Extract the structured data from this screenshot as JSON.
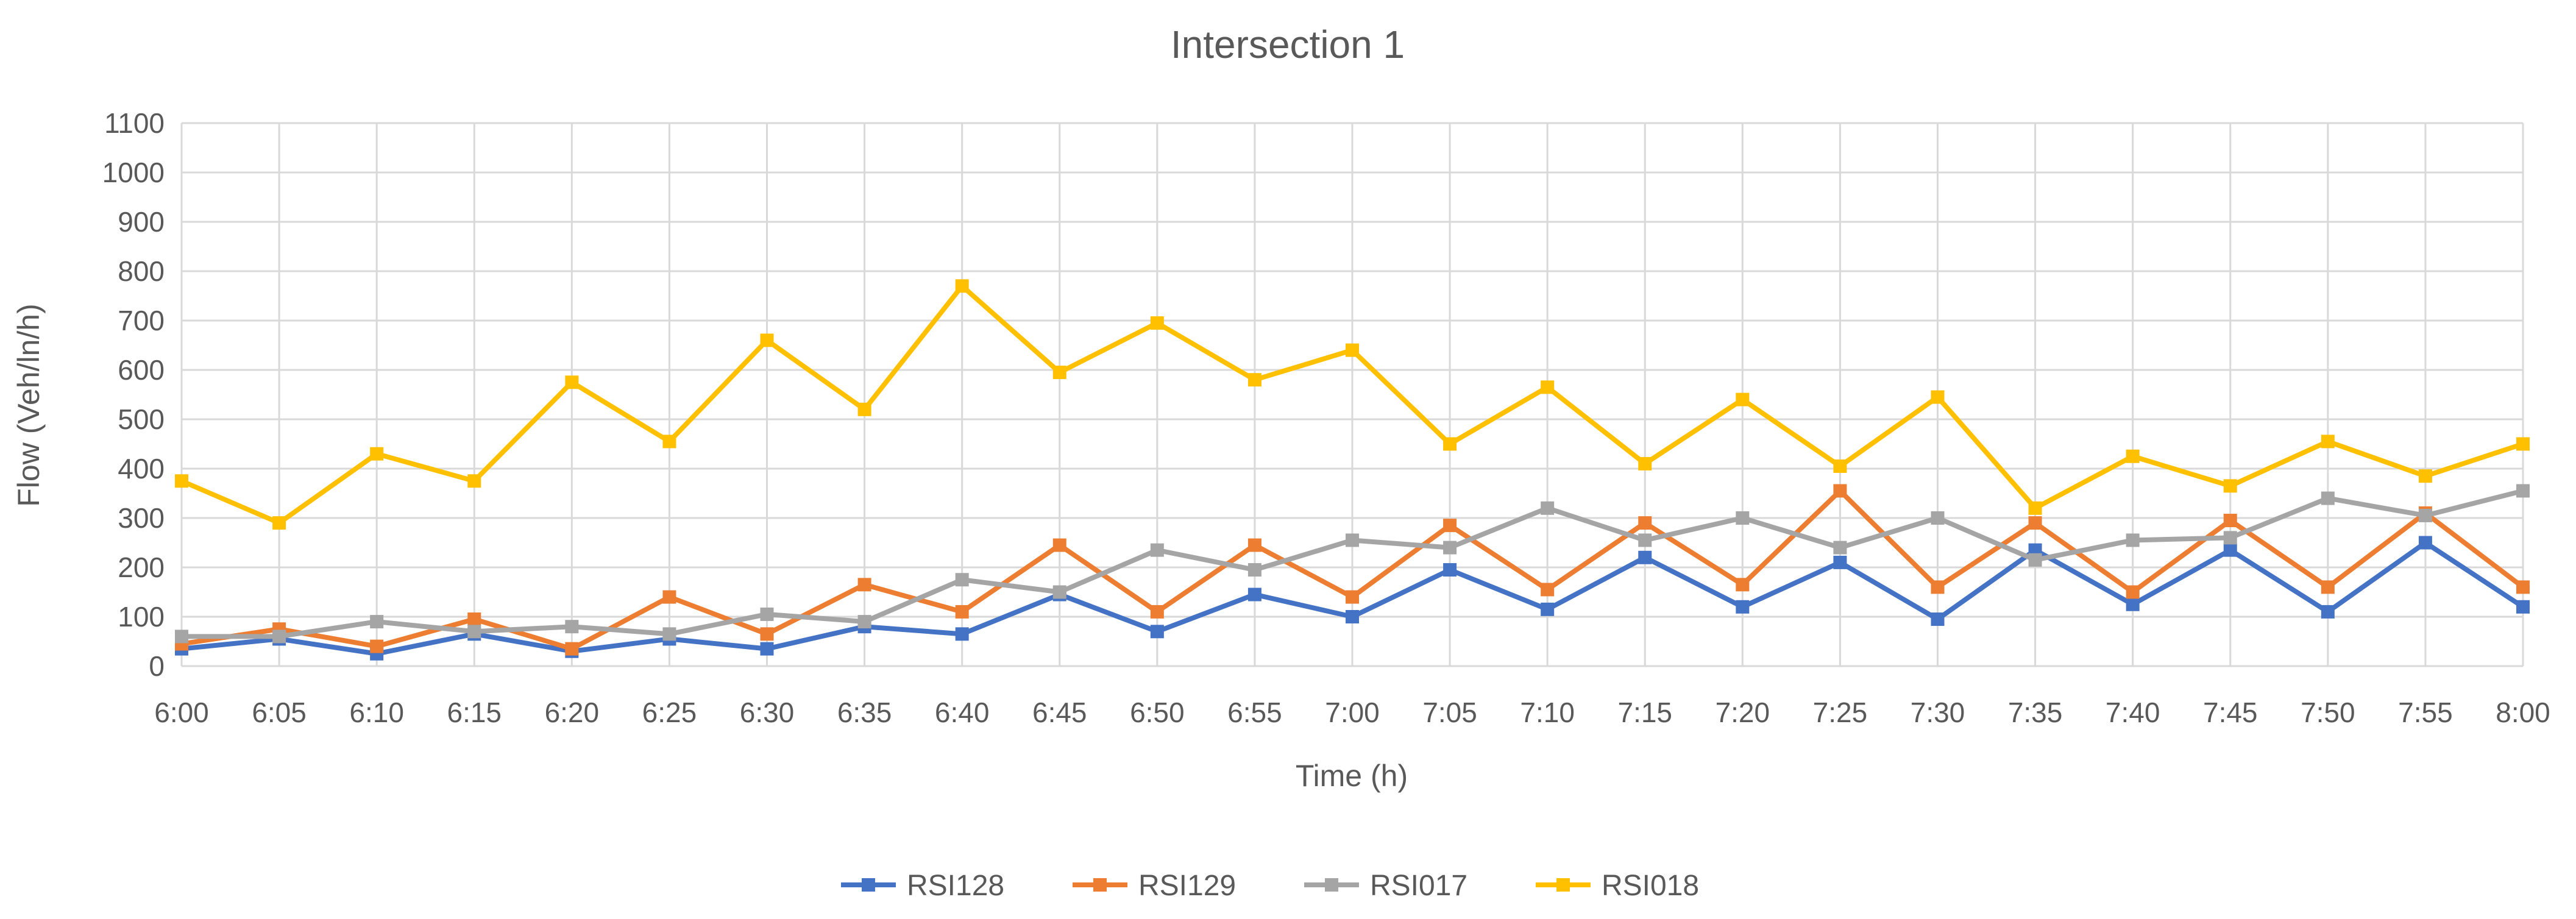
{
  "chart_data": {
    "type": "line",
    "title": "Intersection 1",
    "xlabel": "Time (h)",
    "ylabel": "Flow (Veh/ln/h)",
    "ylim": [
      0,
      1100
    ],
    "yticks": [
      "0",
      "100",
      "200",
      "300",
      "400",
      "500",
      "600",
      "700",
      "800",
      "900",
      "1000",
      "1100"
    ],
    "grid": true,
    "legend_position": "bottom",
    "categories": [
      "6:00",
      "6:05",
      "6:10",
      "6:15",
      "6:20",
      "6:25",
      "6:30",
      "6:35",
      "6:40",
      "6:45",
      "6:50",
      "6:55",
      "7:00",
      "7:05",
      "7:10",
      "7:15",
      "7:20",
      "7:25",
      "7:30",
      "7:35",
      "7:40",
      "7:45",
      "7:50",
      "7:55",
      "8:00"
    ],
    "series": [
      {
        "name": "RSI128",
        "color": "#4472C4",
        "values": [
          35,
          55,
          25,
          65,
          30,
          55,
          35,
          80,
          65,
          145,
          70,
          145,
          100,
          195,
          115,
          220,
          120,
          210,
          95,
          235,
          125,
          235,
          110,
          250,
          120
        ]
      },
      {
        "name": "RSI129",
        "color": "#ED7D31",
        "values": [
          45,
          75,
          40,
          95,
          35,
          140,
          65,
          165,
          110,
          245,
          110,
          245,
          140,
          285,
          155,
          290,
          165,
          355,
          160,
          290,
          150,
          295,
          160,
          310,
          160
        ]
      },
      {
        "name": "RSI017",
        "color": "#A5A5A5",
        "values": [
          60,
          60,
          90,
          70,
          80,
          65,
          105,
          90,
          175,
          150,
          235,
          195,
          255,
          240,
          320,
          255,
          300,
          240,
          300,
          215,
          255,
          260,
          340,
          305,
          355
        ]
      },
      {
        "name": "RSI018",
        "color": "#FFC000",
        "values": [
          375,
          290,
          430,
          375,
          575,
          455,
          660,
          520,
          770,
          595,
          695,
          580,
          640,
          450,
          565,
          410,
          540,
          405,
          545,
          320,
          425,
          365,
          455,
          385,
          450
        ]
      }
    ]
  }
}
